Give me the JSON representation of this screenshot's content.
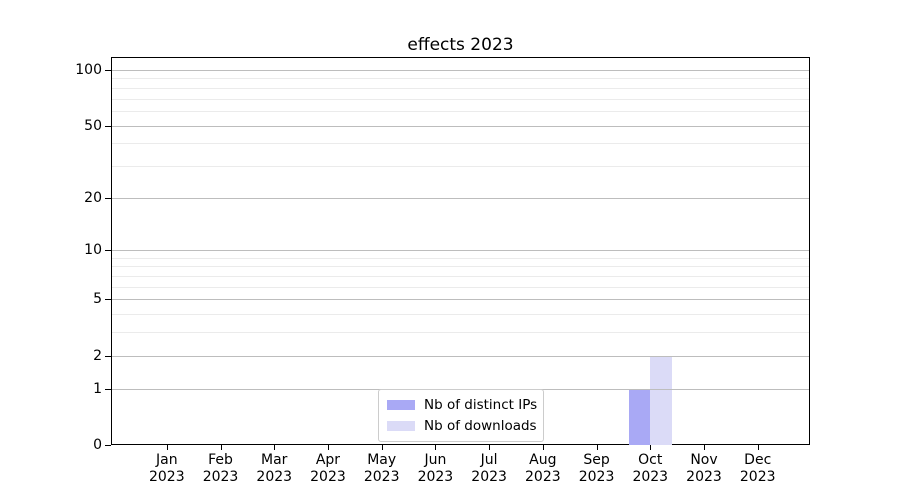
{
  "title": "effects 2023",
  "chart_data": {
    "type": "bar",
    "title": "effects 2023",
    "xlabel": "",
    "ylabel": "",
    "categories": [
      "Jan 2023",
      "Feb 2023",
      "Mar 2023",
      "Apr 2023",
      "May 2023",
      "Jun 2023",
      "Jul 2023",
      "Aug 2023",
      "Sep 2023",
      "Oct 2023",
      "Nov 2023",
      "Dec 2023"
    ],
    "series": [
      {
        "name": "Nb of distinct IPs",
        "color": "#a9a9f5",
        "values": [
          0,
          0,
          0,
          0,
          0,
          0,
          0,
          0,
          0,
          1,
          0,
          0
        ]
      },
      {
        "name": "Nb of downloads",
        "color": "#dbdbf7",
        "values": [
          0,
          0,
          0,
          0,
          0,
          0,
          0,
          0,
          0,
          2,
          0,
          0
        ]
      }
    ],
    "yscale": "log1p",
    "ylim": [
      0,
      117
    ],
    "yticks": [
      0,
      1,
      2,
      5,
      10,
      20,
      50,
      100
    ],
    "minor_yticks": [
      3,
      4,
      6,
      7,
      8,
      9,
      30,
      40,
      60,
      70,
      80,
      90
    ],
    "grid": true,
    "grid_on_top_of_bars": true,
    "legend_position": "lower center"
  },
  "legend": {
    "items": [
      {
        "label": "Nb of distinct IPs",
        "color": "#a9a9f5"
      },
      {
        "label": "Nb of downloads",
        "color": "#dbdbf7"
      }
    ]
  },
  "colors": {
    "major_grid": "#bdbdbd",
    "minor_grid": "#ebebeb",
    "spine": "#000000",
    "legend_border": "#cccccc"
  }
}
